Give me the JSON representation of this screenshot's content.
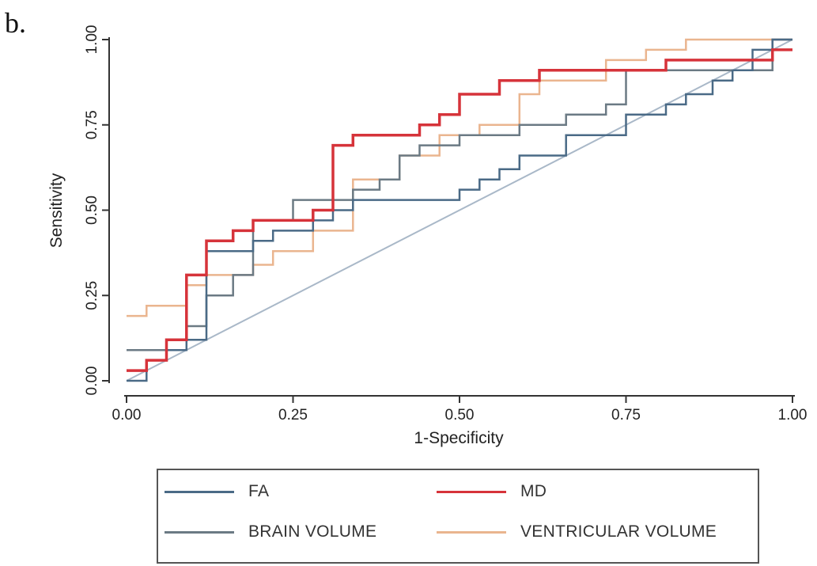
{
  "panel_label": "b.",
  "chart_data": {
    "type": "line",
    "xlabel": "1-Specificity",
    "ylabel": "Sensitivity",
    "xlim": [
      0,
      1
    ],
    "ylim": [
      0,
      1
    ],
    "x_ticks": [
      "0.00",
      "0.25",
      "0.50",
      "0.75",
      "1.00"
    ],
    "y_ticks": [
      "0.00",
      "0.25",
      "0.50",
      "0.75",
      "1.00"
    ],
    "grid": false,
    "legend_position": "bottom",
    "reference_line": {
      "x": [
        0,
        1
      ],
      "y": [
        0,
        1
      ],
      "color": "#a9b8c8"
    },
    "series": [
      {
        "name": "FA",
        "color": "#4a6a86",
        "x": [
          0,
          0.03,
          0.03,
          0.06,
          0.06,
          0.09,
          0.09,
          0.12,
          0.12,
          0.19,
          0.19,
          0.22,
          0.22,
          0.28,
          0.28,
          0.31,
          0.31,
          0.34,
          0.34,
          0.41,
          0.41,
          0.5,
          0.5,
          0.53,
          0.53,
          0.56,
          0.56,
          0.59,
          0.59,
          0.62,
          0.62,
          0.66,
          0.66,
          0.75,
          0.75,
          0.81,
          0.81,
          0.84,
          0.84,
          0.88,
          0.88,
          0.91,
          0.91,
          0.94,
          0.94,
          0.97,
          0.97,
          1.0
        ],
        "y": [
          0,
          0,
          0.06,
          0.06,
          0.09,
          0.09,
          0.12,
          0.12,
          0.38,
          0.38,
          0.41,
          0.41,
          0.44,
          0.44,
          0.47,
          0.47,
          0.5,
          0.5,
          0.53,
          0.53,
          0.53,
          0.53,
          0.56,
          0.56,
          0.59,
          0.59,
          0.62,
          0.62,
          0.66,
          0.66,
          0.66,
          0.66,
          0.72,
          0.72,
          0.78,
          0.78,
          0.81,
          0.81,
          0.84,
          0.84,
          0.88,
          0.88,
          0.91,
          0.91,
          0.97,
          0.97,
          1.0,
          1.0
        ]
      },
      {
        "name": "MD",
        "color": "#d6333a",
        "x": [
          0,
          0.03,
          0.03,
          0.06,
          0.06,
          0.09,
          0.09,
          0.12,
          0.12,
          0.16,
          0.16,
          0.19,
          0.19,
          0.28,
          0.28,
          0.31,
          0.31,
          0.34,
          0.34,
          0.44,
          0.44,
          0.47,
          0.47,
          0.5,
          0.5,
          0.56,
          0.56,
          0.62,
          0.62,
          0.66,
          0.66,
          0.69,
          0.69,
          0.75,
          0.75,
          0.81,
          0.81,
          0.91,
          0.91,
          0.97,
          0.97,
          1.0
        ],
        "y": [
          0.03,
          0.03,
          0.06,
          0.06,
          0.12,
          0.12,
          0.31,
          0.31,
          0.41,
          0.41,
          0.44,
          0.44,
          0.47,
          0.47,
          0.5,
          0.5,
          0.69,
          0.69,
          0.72,
          0.72,
          0.75,
          0.75,
          0.78,
          0.78,
          0.84,
          0.84,
          0.88,
          0.88,
          0.91,
          0.91,
          0.91,
          0.91,
          0.91,
          0.91,
          0.91,
          0.91,
          0.94,
          0.94,
          0.94,
          0.94,
          0.97,
          0.97
        ]
      },
      {
        "name": "BRAIN VOLUME",
        "color": "#6b7a84",
        "x": [
          0,
          0.06,
          0.06,
          0.09,
          0.09,
          0.12,
          0.12,
          0.16,
          0.16,
          0.19,
          0.19,
          0.25,
          0.25,
          0.34,
          0.34,
          0.38,
          0.38,
          0.41,
          0.41,
          0.44,
          0.44,
          0.5,
          0.5,
          0.59,
          0.59,
          0.66,
          0.66,
          0.72,
          0.72,
          0.75,
          0.75,
          0.81,
          0.81,
          0.97,
          0.97,
          1.0
        ],
        "y": [
          0.09,
          0.09,
          0.12,
          0.12,
          0.16,
          0.16,
          0.25,
          0.25,
          0.31,
          0.31,
          0.47,
          0.47,
          0.53,
          0.53,
          0.56,
          0.56,
          0.59,
          0.59,
          0.66,
          0.66,
          0.69,
          0.69,
          0.72,
          0.72,
          0.75,
          0.75,
          0.78,
          0.78,
          0.81,
          0.81,
          0.91,
          0.91,
          0.91,
          0.91,
          1.0,
          1.0
        ]
      },
      {
        "name": "VENTRICULAR VOLUME",
        "color": "#eab58f",
        "x": [
          0,
          0.03,
          0.03,
          0.09,
          0.09,
          0.12,
          0.12,
          0.19,
          0.19,
          0.22,
          0.22,
          0.28,
          0.28,
          0.34,
          0.34,
          0.41,
          0.41,
          0.47,
          0.47,
          0.53,
          0.53,
          0.59,
          0.59,
          0.62,
          0.62,
          0.72,
          0.72,
          0.78,
          0.78,
          0.84,
          0.84,
          0.91,
          0.91,
          1.0
        ],
        "y": [
          0.19,
          0.19,
          0.22,
          0.22,
          0.28,
          0.28,
          0.31,
          0.31,
          0.34,
          0.34,
          0.38,
          0.38,
          0.44,
          0.44,
          0.59,
          0.59,
          0.66,
          0.66,
          0.72,
          0.72,
          0.75,
          0.75,
          0.84,
          0.84,
          0.88,
          0.88,
          0.94,
          0.94,
          0.97,
          0.97,
          1.0,
          1.0,
          1.0,
          1.0
        ]
      }
    ]
  },
  "legend": {
    "items": [
      {
        "label": "FA",
        "color": "#4a6a86"
      },
      {
        "label": "MD",
        "color": "#d6333a"
      },
      {
        "label": "BRAIN VOLUME",
        "color": "#6b7a84"
      },
      {
        "label": "VENTRICULAR VOLUME",
        "color": "#eab58f"
      }
    ]
  }
}
